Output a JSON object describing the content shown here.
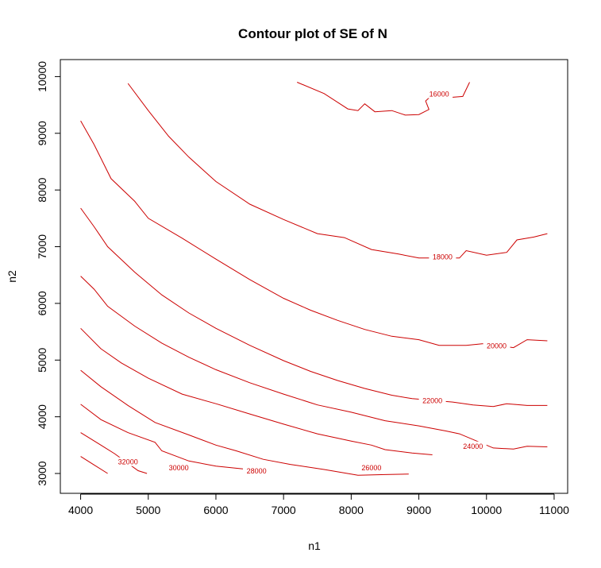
{
  "chart_data": {
    "type": "contour",
    "title": "Contour plot of SE of N",
    "xlabel": "n1",
    "ylabel": "n2",
    "xlim": [
      3700,
      11200
    ],
    "ylim": [
      2650,
      10300
    ],
    "xticks": [
      4000,
      5000,
      6000,
      7000,
      8000,
      9000,
      10000,
      11000
    ],
    "yticks": [
      3000,
      4000,
      5000,
      6000,
      7000,
      8000,
      9000,
      10000
    ],
    "line_color": "#cc0000",
    "levels": [
      {
        "label": "16000",
        "label_at": [
          9300,
          9690
        ],
        "points": [
          [
            7200,
            9900
          ],
          [
            7600,
            9700
          ],
          [
            7950,
            9430
          ],
          [
            8100,
            9400
          ],
          [
            8200,
            9520
          ],
          [
            8350,
            9380
          ],
          [
            8600,
            9400
          ],
          [
            8800,
            9320
          ],
          [
            9000,
            9330
          ],
          [
            9150,
            9420
          ],
          [
            9100,
            9570
          ],
          [
            9200,
            9680
          ],
          [
            9450,
            9630
          ],
          [
            9650,
            9650
          ],
          [
            9750,
            9900
          ]
        ]
      },
      {
        "label": "18000",
        "label_at": [
          9350,
          6820
        ],
        "points": [
          [
            4700,
            9880
          ],
          [
            5000,
            9400
          ],
          [
            5300,
            8950
          ],
          [
            5600,
            8580
          ],
          [
            6000,
            8150
          ],
          [
            6500,
            7750
          ],
          [
            7000,
            7480
          ],
          [
            7500,
            7230
          ],
          [
            7900,
            7160
          ],
          [
            8300,
            6950
          ],
          [
            8700,
            6870
          ],
          [
            9000,
            6800
          ],
          [
            9600,
            6800
          ],
          [
            9700,
            6930
          ],
          [
            10000,
            6850
          ],
          [
            10300,
            6900
          ],
          [
            10450,
            7120
          ],
          [
            10700,
            7170
          ],
          [
            10900,
            7230
          ]
        ]
      },
      {
        "label": "20000",
        "label_at": [
          10150,
          5250
        ],
        "points": [
          [
            4000,
            9220
          ],
          [
            4200,
            8800
          ],
          [
            4450,
            8200
          ],
          [
            4800,
            7800
          ],
          [
            5000,
            7500
          ],
          [
            5500,
            7150
          ],
          [
            6000,
            6780
          ],
          [
            6500,
            6420
          ],
          [
            7000,
            6090
          ],
          [
            7400,
            5880
          ],
          [
            7800,
            5700
          ],
          [
            8200,
            5540
          ],
          [
            8600,
            5420
          ],
          [
            9000,
            5360
          ],
          [
            9300,
            5260
          ],
          [
            9700,
            5260
          ],
          [
            9950,
            5290
          ],
          [
            10400,
            5220
          ],
          [
            10600,
            5360
          ],
          [
            10900,
            5340
          ]
        ]
      },
      {
        "label": "22000",
        "label_at": [
          9200,
          4280
        ],
        "points": [
          [
            4000,
            7680
          ],
          [
            4200,
            7350
          ],
          [
            4400,
            7000
          ],
          [
            4800,
            6550
          ],
          [
            5200,
            6150
          ],
          [
            5600,
            5830
          ],
          [
            6000,
            5560
          ],
          [
            6500,
            5260
          ],
          [
            7000,
            4990
          ],
          [
            7400,
            4800
          ],
          [
            7800,
            4640
          ],
          [
            8200,
            4500
          ],
          [
            8600,
            4380
          ],
          [
            8900,
            4320
          ],
          [
            9500,
            4260
          ],
          [
            9800,
            4210
          ],
          [
            10100,
            4180
          ],
          [
            10300,
            4230
          ],
          [
            10600,
            4200
          ],
          [
            10900,
            4200
          ]
        ]
      },
      {
        "label": "24000",
        "label_at": [
          9800,
          3480
        ],
        "points": [
          [
            4000,
            6480
          ],
          [
            4200,
            6250
          ],
          [
            4400,
            5950
          ],
          [
            4800,
            5600
          ],
          [
            5200,
            5300
          ],
          [
            5600,
            5050
          ],
          [
            6000,
            4830
          ],
          [
            6500,
            4600
          ],
          [
            7000,
            4400
          ],
          [
            7500,
            4210
          ],
          [
            8000,
            4080
          ],
          [
            8500,
            3930
          ],
          [
            9000,
            3840
          ],
          [
            9400,
            3750
          ],
          [
            9600,
            3700
          ],
          [
            10100,
            3450
          ],
          [
            10400,
            3430
          ],
          [
            10600,
            3480
          ],
          [
            10900,
            3470
          ]
        ]
      },
      {
        "label": "26000",
        "label_at": [
          8300,
          3100
        ],
        "points": [
          [
            4000,
            5560
          ],
          [
            4300,
            5200
          ],
          [
            4600,
            4950
          ],
          [
            5000,
            4680
          ],
          [
            5500,
            4400
          ],
          [
            6000,
            4230
          ],
          [
            6500,
            4050
          ],
          [
            7000,
            3870
          ],
          [
            7500,
            3700
          ],
          [
            8000,
            3570
          ],
          [
            8300,
            3500
          ],
          [
            8500,
            3420
          ],
          [
            8900,
            3360
          ],
          [
            9200,
            3330
          ]
        ]
      },
      {
        "label": "28000",
        "label_at": [
          6600,
          3040
        ],
        "points": [
          [
            4000,
            4820
          ],
          [
            4300,
            4530
          ],
          [
            4700,
            4200
          ],
          [
            5100,
            3900
          ],
          [
            5600,
            3680
          ],
          [
            6000,
            3500
          ],
          [
            6300,
            3400
          ],
          [
            6700,
            3250
          ],
          [
            7100,
            3160
          ],
          [
            7600,
            3070
          ],
          [
            8100,
            2970
          ],
          [
            8500,
            2980
          ],
          [
            8850,
            2990
          ]
        ]
      },
      {
        "label": "30000",
        "label_at": [
          5450,
          3100
        ],
        "points": [
          [
            4000,
            4220
          ],
          [
            4300,
            3950
          ],
          [
            4700,
            3720
          ],
          [
            5100,
            3550
          ],
          [
            5200,
            3400
          ],
          [
            5600,
            3220
          ],
          [
            6000,
            3130
          ],
          [
            6400,
            3080
          ]
        ]
      },
      {
        "label": "32000",
        "label_at": [
          4700,
          3200
        ],
        "points": [
          [
            4000,
            3720
          ],
          [
            4300,
            3500
          ],
          [
            4500,
            3350
          ],
          [
            4850,
            3050
          ],
          [
            4980,
            3000
          ]
        ]
      },
      {
        "label": "",
        "label_at": null,
        "points": [
          [
            4000,
            3300
          ],
          [
            4200,
            3150
          ],
          [
            4400,
            3000
          ]
        ]
      }
    ]
  }
}
